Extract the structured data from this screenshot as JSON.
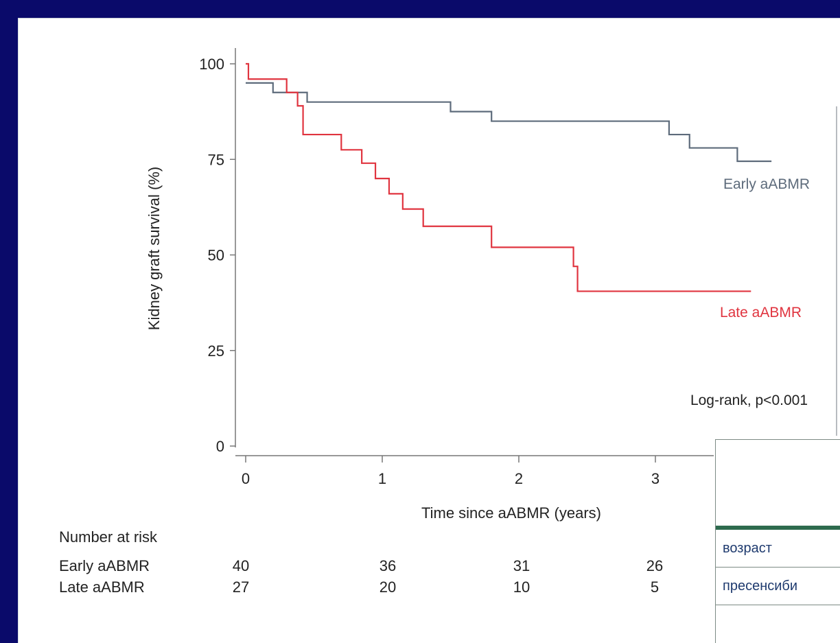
{
  "chart_data": {
    "type": "line",
    "subtype": "kaplan-meier",
    "title": "",
    "xlabel": "Time since aABMR (years)",
    "ylabel": "Kidney graft survival (%)",
    "xlim": [
      0,
      4
    ],
    "ylim": [
      0,
      100
    ],
    "x_ticks": [
      0,
      1,
      2,
      3
    ],
    "y_ticks": [
      0,
      25,
      50,
      75,
      100
    ],
    "annotation": "Log-rank, p<0.001",
    "series": [
      {
        "name": "Early aABMR",
        "color": "#5d6b7b",
        "x": [
          0,
          0.1,
          0.2,
          0.45,
          1.5,
          1.8,
          3.1,
          3.25,
          3.6,
          3.85
        ],
        "y": [
          95,
          95,
          92.5,
          90,
          87.5,
          85,
          81.5,
          78,
          74.5,
          74.5
        ]
      },
      {
        "name": "Late aABMR",
        "color": "#e0343f",
        "x": [
          0,
          0.02,
          0.3,
          0.38,
          0.42,
          0.7,
          0.85,
          0.95,
          1.05,
          1.15,
          1.3,
          1.4,
          1.8,
          2.4,
          2.43,
          3.7
        ],
        "y": [
          100,
          96,
          92.5,
          89,
          81.5,
          77.5,
          74,
          70,
          66,
          62,
          57.5,
          57.5,
          52,
          47,
          40.5,
          40.5
        ]
      }
    ],
    "risk_table": {
      "title": "Number at risk",
      "rows": [
        {
          "label": "Early aABMR",
          "values": [
            "40",
            "36",
            "31",
            "26"
          ]
        },
        {
          "label": "Late aABMR",
          "values": [
            "27",
            "20",
            "10",
            "5"
          ]
        }
      ]
    }
  },
  "overlay_table": {
    "rows": [
      "возраст",
      "пресенсиби"
    ]
  }
}
